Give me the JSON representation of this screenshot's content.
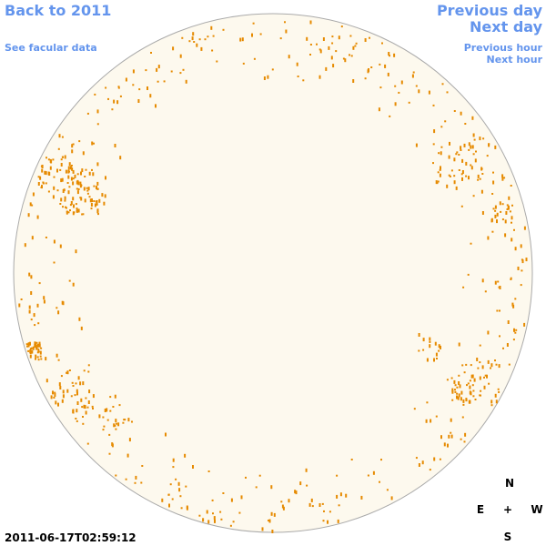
{
  "nav": {
    "back": "Back to 2011",
    "see_facular": "See facular data",
    "previous_day": "Previous day",
    "next_day": "Next day",
    "previous_hour": "Previous hour",
    "next_hour": "Next hour"
  },
  "timestamp": "2011-06-17T02:59:12",
  "compass": {
    "north": "N",
    "east": "E",
    "center": "+",
    "west": "W",
    "south": "S"
  }
}
